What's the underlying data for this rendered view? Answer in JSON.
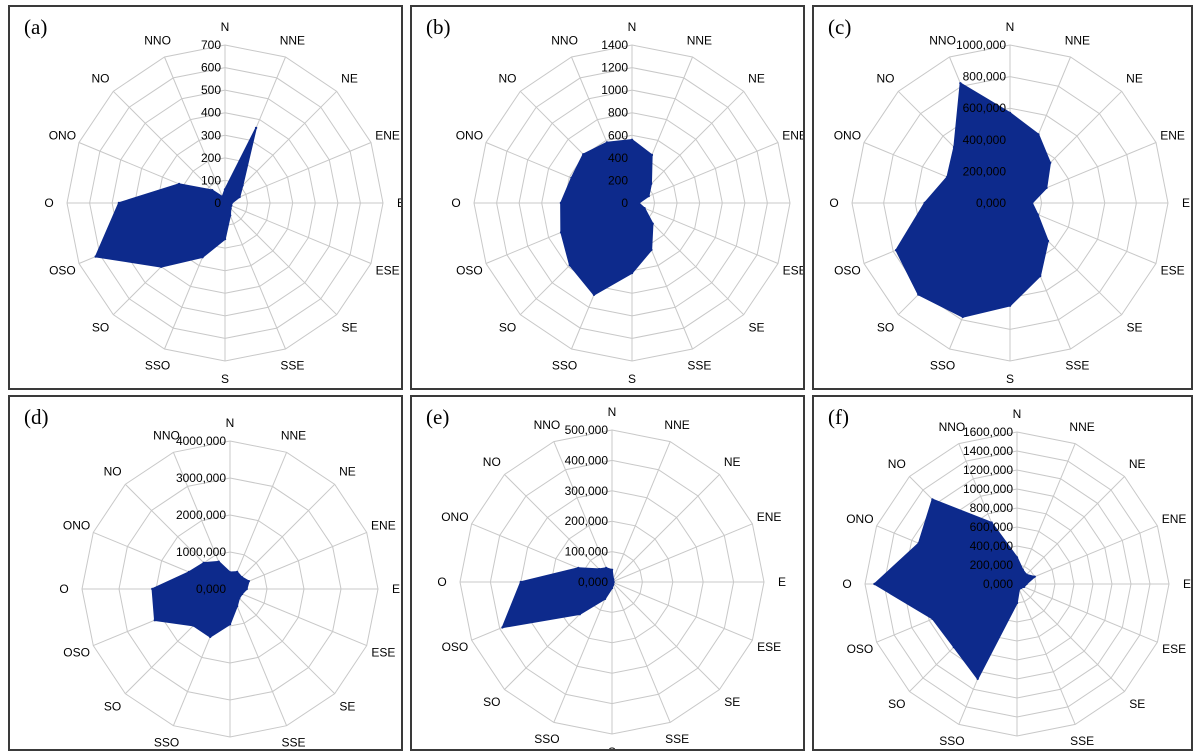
{
  "colors": {
    "fill": "#0d2a8c",
    "stroke": "#0d2a8c",
    "grid": "#c8c8c8",
    "label": "#000000",
    "background": "#ffffff"
  },
  "chart_data": [
    {
      "type": "radar",
      "panel_label": "(a)",
      "grid": true,
      "categories": [
        "N",
        "NNE",
        "NE",
        "ENE",
        "E",
        "ESE",
        "SE",
        "SSE",
        "S",
        "SSO",
        "SO",
        "OSO",
        "O",
        "ONO",
        "NO",
        "NNO"
      ],
      "tick_labels": [
        "0",
        "100",
        "200",
        "300",
        "400",
        "500",
        "600",
        "700"
      ],
      "rlim": [
        0,
        700
      ],
      "values": [
        60,
        360,
        110,
        70,
        30,
        30,
        35,
        60,
        160,
        260,
        400,
        620,
        470,
        220,
        80,
        30
      ]
    },
    {
      "type": "radar",
      "panel_label": "(b)",
      "grid": true,
      "categories": [
        "N",
        "NNE",
        "NE",
        "ENE",
        "E",
        "ESE",
        "SE",
        "SSE",
        "S",
        "SSO",
        "SO",
        "OSO",
        "O",
        "ONO",
        "NO",
        "NNO"
      ],
      "tick_labels": [
        "0",
        "200",
        "400",
        "600",
        "800",
        "1000",
        "1200",
        "1400"
      ],
      "rlim": [
        0,
        1400
      ],
      "values": [
        560,
        460,
        240,
        160,
        60,
        120,
        260,
        450,
        620,
        880,
        780,
        680,
        630,
        580,
        610,
        580
      ]
    },
    {
      "type": "radar",
      "panel_label": "(c)",
      "grid": true,
      "categories": [
        "N",
        "NNE",
        "NE",
        "ENE",
        "E",
        "ESE",
        "SE",
        "SSE",
        "S",
        "SSO",
        "SO",
        "OSO",
        "O",
        "ONO",
        "NO",
        "NNO"
      ],
      "tick_labels": [
        "0,000",
        "200,000",
        "400,000",
        "600,000",
        "800,000",
        "1000,000"
      ],
      "rlim": [
        0,
        1000
      ],
      "values": [
        570,
        470,
        360,
        250,
        140,
        190,
        340,
        500,
        650,
        780,
        820,
        780,
        540,
        430,
        500,
        820
      ]
    },
    {
      "type": "radar",
      "panel_label": "(d)",
      "grid": true,
      "categories": [
        "N",
        "NNE",
        "NE",
        "ENE",
        "E",
        "ESE",
        "SE",
        "SSE",
        "S",
        "SSO",
        "SO",
        "OSO",
        "O",
        "ONO",
        "NO",
        "NNO"
      ],
      "tick_labels": [
        "0,000",
        "1000,000",
        "2000,000",
        "3000,000",
        "4000,000"
      ],
      "rlim": [
        0,
        4000
      ],
      "values": [
        450,
        500,
        450,
        550,
        450,
        350,
        350,
        500,
        950,
        1400,
        1400,
        2200,
        2100,
        1200,
        1000,
        800
      ]
    },
    {
      "type": "radar",
      "panel_label": "(e)",
      "grid": true,
      "categories": [
        "N",
        "NNE",
        "NE",
        "ENE",
        "E",
        "ESE",
        "SE",
        "SSE",
        "S",
        "SSO",
        "SO",
        "OSO",
        "O",
        "ONO",
        "NO",
        "NNO"
      ],
      "tick_labels": [
        "0,000",
        "100,000",
        "200,000",
        "300,000",
        "400,000",
        "500,000"
      ],
      "rlim": [
        0,
        500
      ],
      "values": [
        40,
        10,
        5,
        5,
        5,
        5,
        5,
        10,
        20,
        60,
        150,
        390,
        300,
        120,
        60,
        50
      ]
    },
    {
      "type": "radar",
      "panel_label": "(f)",
      "grid": true,
      "categories": [
        "N",
        "NNE",
        "NE",
        "ENE",
        "E",
        "ESE",
        "SE",
        "SSE",
        "S",
        "SSO",
        "SO",
        "OSO",
        "O",
        "ONO",
        "NO",
        "NNO"
      ],
      "tick_labels": [
        "0,000",
        "200,000",
        "400,000",
        "600,000",
        "800,000",
        "1000,000",
        "1200,000",
        "1400,000",
        "1600,000"
      ],
      "rlim": [
        0,
        1600
      ],
      "values": [
        280,
        160,
        140,
        200,
        100,
        80,
        60,
        60,
        200,
        1080,
        940,
        960,
        1500,
        1120,
        1260,
        700
      ]
    }
  ]
}
